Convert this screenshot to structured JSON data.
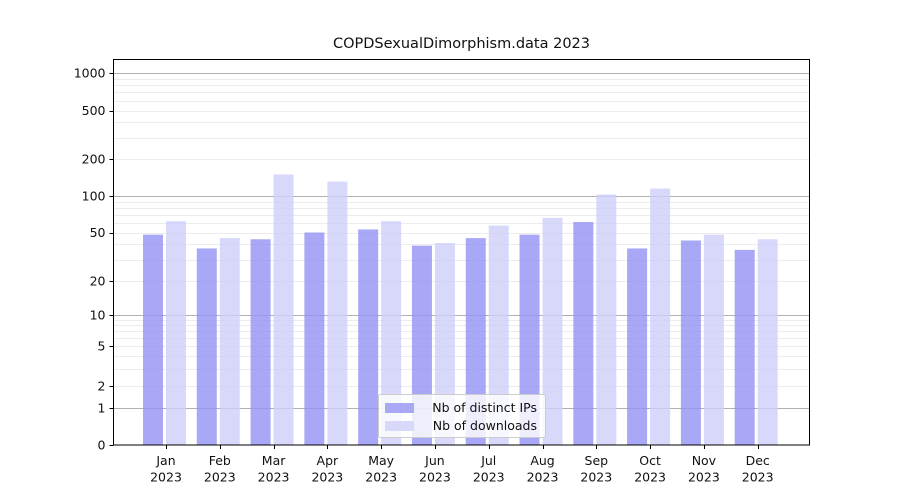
{
  "title": "COPDSexualDimorphism.data 2023",
  "chart_data": {
    "type": "bar",
    "title": "COPDSexualDimorphism.data 2023",
    "categories": [
      "Jan",
      "Feb",
      "Mar",
      "Apr",
      "May",
      "Jun",
      "Jul",
      "Aug",
      "Sep",
      "Oct",
      "Nov",
      "Dec"
    ],
    "year_label": "2023",
    "series": [
      {
        "name": "Nb of distinct IPs",
        "color": "#a8a8f6",
        "values": [
          48,
          37,
          44,
          50,
          53,
          39,
          45,
          48,
          61,
          37,
          43,
          36
        ]
      },
      {
        "name": "Nb of downloads",
        "color": "#d8d9fa",
        "values": [
          62,
          45,
          150,
          131,
          62,
          41,
          57,
          66,
          103,
          115,
          48,
          44
        ]
      }
    ],
    "y_axis": {
      "scale": "log-like with zero baseline",
      "tick_labels": [
        "1000",
        "500",
        "200",
        "100",
        "50",
        "20",
        "10",
        "5",
        "2",
        "1",
        "0"
      ],
      "ylim": [
        0,
        1000
      ]
    },
    "legend": {
      "position": "lower center",
      "entries": [
        "Nb of distinct IPs",
        "Nb of downloads"
      ]
    },
    "grid": {
      "major_decade_color": "#b0b0b0",
      "minor_color": "#ececec"
    }
  }
}
